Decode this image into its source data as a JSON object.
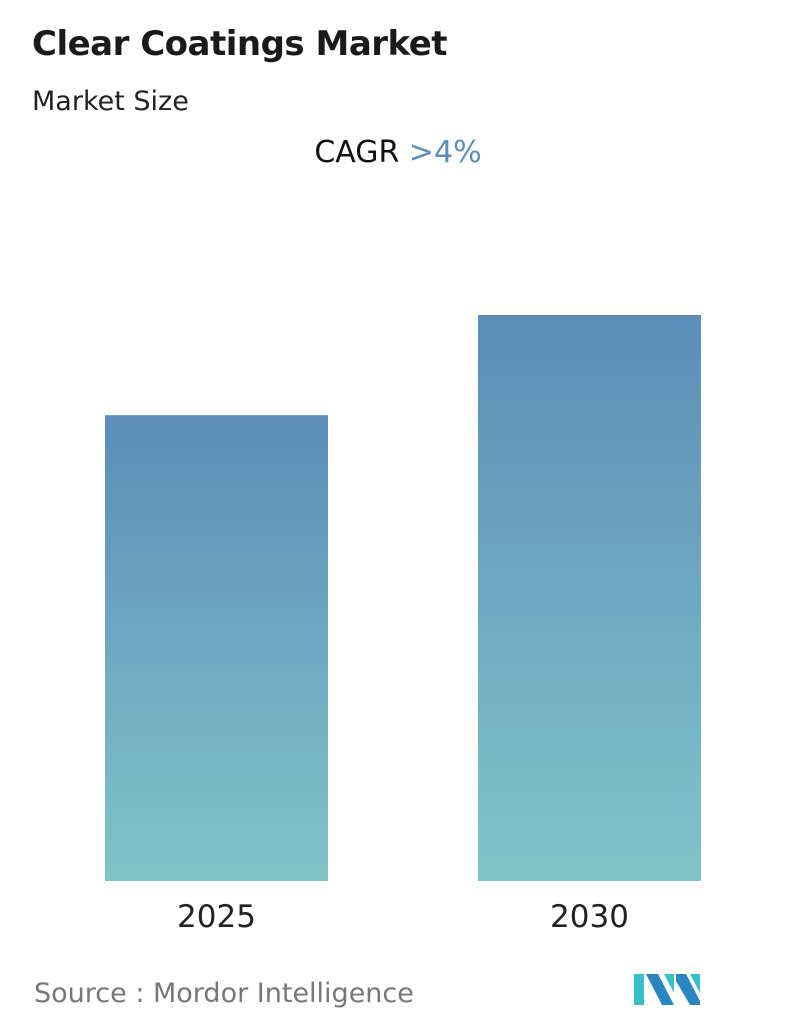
{
  "title": "Clear Coatings Market",
  "subtitle": "Market Size",
  "cagr": {
    "label": "CAGR",
    "value": ">4%"
  },
  "source": "Source :  Mordor Intelligence",
  "colors": {
    "bar_top": "#5b8db8",
    "bar_bottom": "#80c4c9",
    "cagr_value": "#5b8db8"
  },
  "logo": {
    "name": "Mordor Intelligence logo",
    "icon": "mordor-logo-icon"
  },
  "chart_data": {
    "type": "bar",
    "categories": [
      "2025",
      "2030"
    ],
    "values": [
      82.3,
      100
    ],
    "value_note": "relative bar heights; no value axis printed",
    "title": "Clear Coatings Market",
    "subtitle": "Market Size",
    "xlabel": "",
    "ylabel": "",
    "grid": false,
    "legend": "none"
  }
}
